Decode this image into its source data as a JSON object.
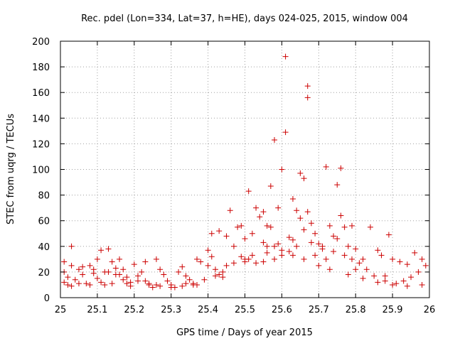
{
  "chart_data": {
    "type": "scatter",
    "title": "Rec. pdel (Lon=334, Lat=37, h=HE), days 024-025, 2015, window 004",
    "xlabel": "GPS time / Days of year 2015",
    "ylabel": "STEC from uqrg / TECUs",
    "xlim": [
      25,
      26
    ],
    "ylim": [
      0,
      200
    ],
    "xticks": [
      25,
      25.1,
      25.2,
      25.3,
      25.4,
      25.5,
      25.6,
      25.7,
      25.8,
      25.9,
      26
    ],
    "xtick_labels": [
      "25",
      "25.1",
      "25.2",
      "25.3",
      "25.4",
      "25.5",
      "25.6",
      "25.7",
      "25.8",
      "25.9",
      "26"
    ],
    "yticks": [
      0,
      20,
      40,
      60,
      80,
      100,
      120,
      140,
      160,
      180,
      200
    ],
    "ytick_labels": [
      "0",
      "20",
      "40",
      "60",
      "80",
      "100",
      "120",
      "140",
      "160",
      "180",
      "200"
    ],
    "grid": true,
    "marker": "+",
    "color": "#cc0000",
    "series": [
      {
        "name": "STEC",
        "points": [
          [
            25.01,
            28
          ],
          [
            25.03,
            40
          ],
          [
            25.01,
            20
          ],
          [
            25.02,
            16
          ],
          [
            25.01,
            12
          ],
          [
            25.03,
            9
          ],
          [
            25.05,
            22
          ],
          [
            25.06,
            18
          ],
          [
            25.04,
            14
          ],
          [
            25.07,
            11
          ],
          [
            25.08,
            25
          ],
          [
            25.09,
            19
          ],
          [
            25.1,
            15
          ],
          [
            25.11,
            12
          ],
          [
            25.12,
            10
          ],
          [
            25.1,
            30
          ],
          [
            25.11,
            37
          ],
          [
            25.13,
            38
          ],
          [
            25.14,
            28
          ],
          [
            25.15,
            23
          ],
          [
            25.13,
            20
          ],
          [
            25.16,
            18
          ],
          [
            25.17,
            14
          ],
          [
            25.18,
            11
          ],
          [
            25.19,
            9
          ],
          [
            25.16,
            30
          ],
          [
            25.17,
            22
          ],
          [
            25.2,
            26
          ],
          [
            25.22,
            20
          ],
          [
            25.21,
            17
          ],
          [
            25.23,
            13
          ],
          [
            25.24,
            10
          ],
          [
            25.25,
            8
          ],
          [
            25.23,
            28
          ],
          [
            25.26,
            30
          ],
          [
            25.27,
            22
          ],
          [
            25.28,
            18
          ],
          [
            25.29,
            13
          ],
          [
            25.3,
            10
          ],
          [
            25.31,
            8
          ],
          [
            25.32,
            20
          ],
          [
            25.33,
            24
          ],
          [
            25.34,
            17
          ],
          [
            25.35,
            14
          ],
          [
            25.36,
            11
          ],
          [
            25.37,
            10
          ],
          [
            25.37,
            30
          ],
          [
            25.38,
            28
          ],
          [
            25.4,
            37
          ],
          [
            25.41,
            32
          ],
          [
            25.4,
            25
          ],
          [
            25.42,
            22
          ],
          [
            25.43,
            18
          ],
          [
            25.44,
            16
          ],
          [
            25.41,
            50
          ],
          [
            25.43,
            52
          ],
          [
            25.45,
            48
          ],
          [
            25.46,
            68
          ],
          [
            25.48,
            55
          ],
          [
            25.49,
            56
          ],
          [
            25.47,
            40
          ],
          [
            25.5,
            46
          ],
          [
            25.49,
            32
          ],
          [
            25.5,
            28
          ],
          [
            25.51,
            30
          ],
          [
            25.52,
            50
          ],
          [
            25.51,
            83
          ],
          [
            25.53,
            70
          ],
          [
            25.54,
            63
          ],
          [
            25.55,
            67
          ],
          [
            25.56,
            56
          ],
          [
            25.57,
            55
          ],
          [
            25.56,
            40
          ],
          [
            25.58,
            40
          ],
          [
            25.59,
            42
          ],
          [
            25.57,
            87
          ],
          [
            25.58,
            123
          ],
          [
            25.59,
            70
          ],
          [
            25.6,
            100
          ],
          [
            25.61,
            188
          ],
          [
            25.61,
            129
          ],
          [
            25.62,
            47
          ],
          [
            25.63,
            77
          ],
          [
            25.64,
            68
          ],
          [
            25.65,
            62
          ],
          [
            25.65,
            97
          ],
          [
            25.66,
            93
          ],
          [
            25.67,
            165
          ],
          [
            25.67,
            156
          ],
          [
            25.67,
            67
          ],
          [
            25.66,
            53
          ],
          [
            25.68,
            58
          ],
          [
            25.69,
            50
          ],
          [
            25.7,
            42
          ],
          [
            25.71,
            38
          ],
          [
            25.72,
            102
          ],
          [
            25.73,
            56
          ],
          [
            25.74,
            48
          ],
          [
            25.75,
            88
          ],
          [
            25.76,
            101
          ],
          [
            25.76,
            64
          ],
          [
            25.77,
            55
          ],
          [
            25.75,
            46
          ],
          [
            25.78,
            40
          ],
          [
            25.79,
            56
          ],
          [
            25.8,
            38
          ],
          [
            25.82,
            30
          ],
          [
            25.84,
            55
          ],
          [
            25.86,
            37
          ],
          [
            25.87,
            33
          ],
          [
            25.89,
            49
          ],
          [
            25.9,
            30
          ],
          [
            25.92,
            28
          ],
          [
            25.94,
            26
          ],
          [
            25.96,
            35
          ],
          [
            25.98,
            30
          ],
          [
            25.99,
            25
          ],
          [
            25.97,
            20
          ],
          [
            25.95,
            16
          ],
          [
            25.93,
            13
          ],
          [
            25.91,
            11
          ],
          [
            25.88,
            13
          ],
          [
            25.85,
            17
          ],
          [
            25.83,
            22
          ],
          [
            25.81,
            27
          ],
          [
            25.79,
            30
          ],
          [
            25.77,
            33
          ],
          [
            25.74,
            36
          ],
          [
            25.71,
            40
          ],
          [
            25.68,
            43
          ],
          [
            25.64,
            40
          ],
          [
            25.62,
            36
          ],
          [
            25.6,
            33
          ],
          [
            25.58,
            30
          ],
          [
            25.55,
            28
          ],
          [
            25.53,
            27
          ],
          [
            25.5,
            30
          ],
          [
            25.47,
            27
          ],
          [
            25.44,
            20
          ],
          [
            25.42,
            17
          ],
          [
            25.39,
            14
          ],
          [
            25.36,
            10
          ],
          [
            25.33,
            9
          ],
          [
            25.3,
            8
          ],
          [
            25.27,
            9
          ],
          [
            25.24,
            11
          ],
          [
            25.21,
            13
          ],
          [
            25.18,
            16
          ],
          [
            25.15,
            18
          ],
          [
            25.12,
            20
          ],
          [
            25.09,
            22
          ],
          [
            25.06,
            24
          ],
          [
            25.03,
            25
          ],
          [
            25.02,
            10
          ],
          [
            25.05,
            11
          ],
          [
            25.08,
            10
          ],
          [
            25.14,
            11
          ],
          [
            25.19,
            12
          ],
          [
            25.26,
            10
          ],
          [
            25.34,
            11
          ],
          [
            25.45,
            25
          ],
          [
            25.52,
            33
          ],
          [
            25.56,
            35
          ],
          [
            25.6,
            37
          ],
          [
            25.63,
            33
          ],
          [
            25.66,
            30
          ],
          [
            25.7,
            25
          ],
          [
            25.73,
            22
          ],
          [
            25.78,
            18
          ],
          [
            25.82,
            15
          ],
          [
            25.86,
            12
          ],
          [
            25.9,
            10
          ],
          [
            25.94,
            9
          ],
          [
            25.98,
            10
          ],
          [
            25.55,
            43
          ],
          [
            25.63,
            45
          ],
          [
            25.69,
            33
          ],
          [
            25.72,
            30
          ],
          [
            25.8,
            22
          ],
          [
            25.88,
            17
          ]
        ]
      }
    ]
  }
}
